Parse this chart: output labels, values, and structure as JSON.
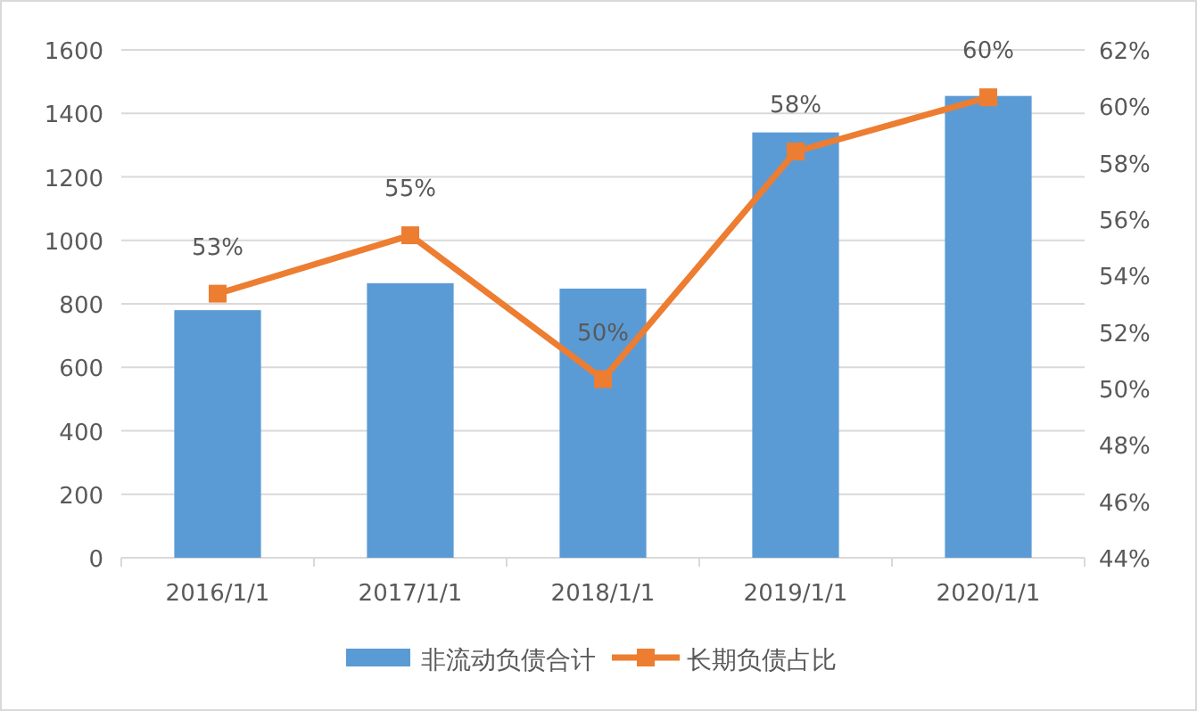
{
  "chart_data": {
    "type": "bar",
    "categories": [
      "2016/1/1",
      "2017/1/1",
      "2018/1/1",
      "2019/1/1",
      "2020/1/1"
    ],
    "series": [
      {
        "name": "非流动负债合计",
        "color": "#5b9bd5",
        "values": [
          780,
          865,
          848,
          1340,
          1455
        ]
      },
      {
        "name": "长期负债占比",
        "type": "line",
        "axis": "y2",
        "color": "#ed7d31",
        "marker": "square",
        "values": [
          53.36,
          55.43,
          50.33,
          58.4,
          60.32
        ],
        "value_labels": [
          "53%",
          "55%",
          "50%",
          "58%",
          "60%"
        ]
      }
    ],
    "ylim": [
      0,
      1600
    ],
    "yticks": [
      0,
      200,
      400,
      600,
      800,
      1000,
      1200,
      1400,
      1600
    ],
    "y2lim": [
      44,
      62
    ],
    "y2ticks": [
      {
        "value": 44,
        "label": "44%"
      },
      {
        "value": 46,
        "label": "46%"
      },
      {
        "value": 48,
        "label": "48%"
      },
      {
        "value": 50,
        "label": "50%"
      },
      {
        "value": 52,
        "label": "52%"
      },
      {
        "value": 54,
        "label": "54%"
      },
      {
        "value": 56,
        "label": "56%"
      },
      {
        "value": 58,
        "label": "58%"
      },
      {
        "value": 60,
        "label": "60%"
      },
      {
        "value": 62,
        "label": "62%"
      }
    ],
    "grid": "y",
    "legend": "bottom"
  }
}
